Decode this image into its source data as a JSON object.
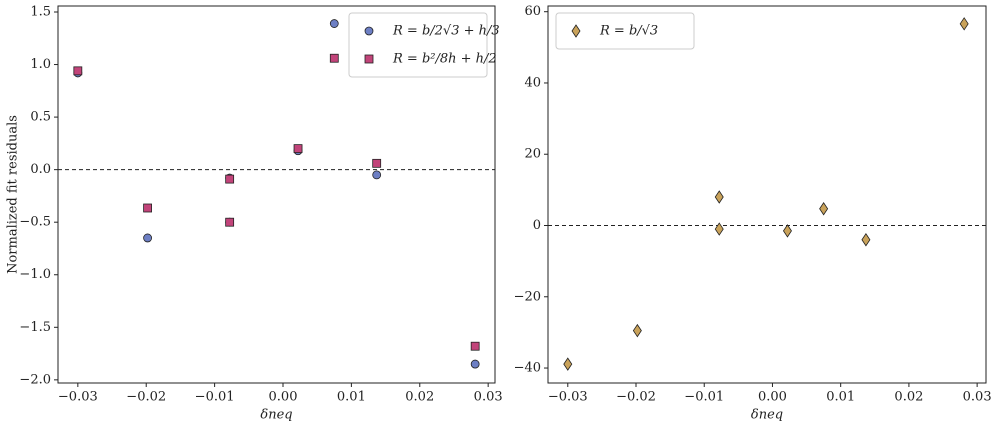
{
  "chart_data": [
    {
      "type": "scatter",
      "ylabel": "Normalized fit residuals",
      "xlabel": "δneq",
      "xlim": [
        -0.0329,
        0.031
      ],
      "ylim": [
        -2.03,
        1.557
      ],
      "xticks": [
        {
          "value": -0.03,
          "label": "−0.03"
        },
        {
          "value": -0.02,
          "label": "−0.02"
        },
        {
          "value": -0.01,
          "label": "−0.01"
        },
        {
          "value": 0,
          "label": "0.00"
        },
        0.01,
        0.02,
        0.03
      ],
      "yticks": [
        {
          "value": -2.0,
          "label": "−2.0"
        },
        {
          "value": -1.5,
          "label": "−1.5"
        },
        {
          "value": -1.0,
          "label": "−1.0"
        },
        {
          "value": -0.5,
          "label": "−0.5"
        },
        {
          "value": 0,
          "label": "0.0"
        },
        0.5,
        {
          "value": 1.0,
          "label": "1.0"
        },
        1.5
      ],
      "hline": 0,
      "legend": "upper right",
      "series": [
        {
          "name": "R = b/2√3 + h/3",
          "color": "#6d7fc4",
          "marker": "circle",
          "x": [
            -0.03,
            -0.0198,
            -0.0078,
            -0.0078,
            0.0022,
            0.0075,
            0.0137,
            0.0281
          ],
          "values": [
            0.92,
            -0.65,
            -0.08,
            -0.5,
            0.18,
            1.39,
            -0.05,
            -1.85
          ]
        },
        {
          "name": "R = b²/8h + h/2",
          "color": "#c2447a",
          "marker": "square",
          "x": [
            -0.03,
            -0.0198,
            -0.0078,
            -0.0078,
            0.0022,
            0.0075,
            0.0137,
            0.0281
          ],
          "values": [
            0.94,
            -0.365,
            -0.09,
            -0.5,
            0.2,
            1.06,
            0.06,
            -1.68
          ]
        }
      ]
    },
    {
      "type": "scatter",
      "xlabel": "δneq",
      "xlim": [
        -0.0329,
        0.0313
      ],
      "ylim": [
        -44.2,
        61.6
      ],
      "xticks": [
        {
          "value": -0.03,
          "label": "−0.03"
        },
        {
          "value": -0.02,
          "label": "−0.02"
        },
        {
          "value": -0.01,
          "label": "−0.01"
        },
        {
          "value": 0,
          "label": "0.00"
        },
        0.01,
        0.02,
        0.03
      ],
      "yticks": [
        {
          "value": -40,
          "label": "−40"
        },
        {
          "value": -20,
          "label": "−20"
        },
        0,
        20,
        40,
        60
      ],
      "hline": 0,
      "legend": "upper left",
      "series": [
        {
          "name": "R = b/√3",
          "color": "#c9a25a",
          "marker": "diamond",
          "x": [
            -0.03,
            -0.0198,
            -0.0078,
            -0.0078,
            0.0022,
            0.0075,
            0.0137,
            0.0281
          ],
          "values": [
            -38.9,
            -29.5,
            8,
            -1,
            -1.5,
            4.7,
            -4,
            56.6
          ]
        }
      ]
    }
  ]
}
